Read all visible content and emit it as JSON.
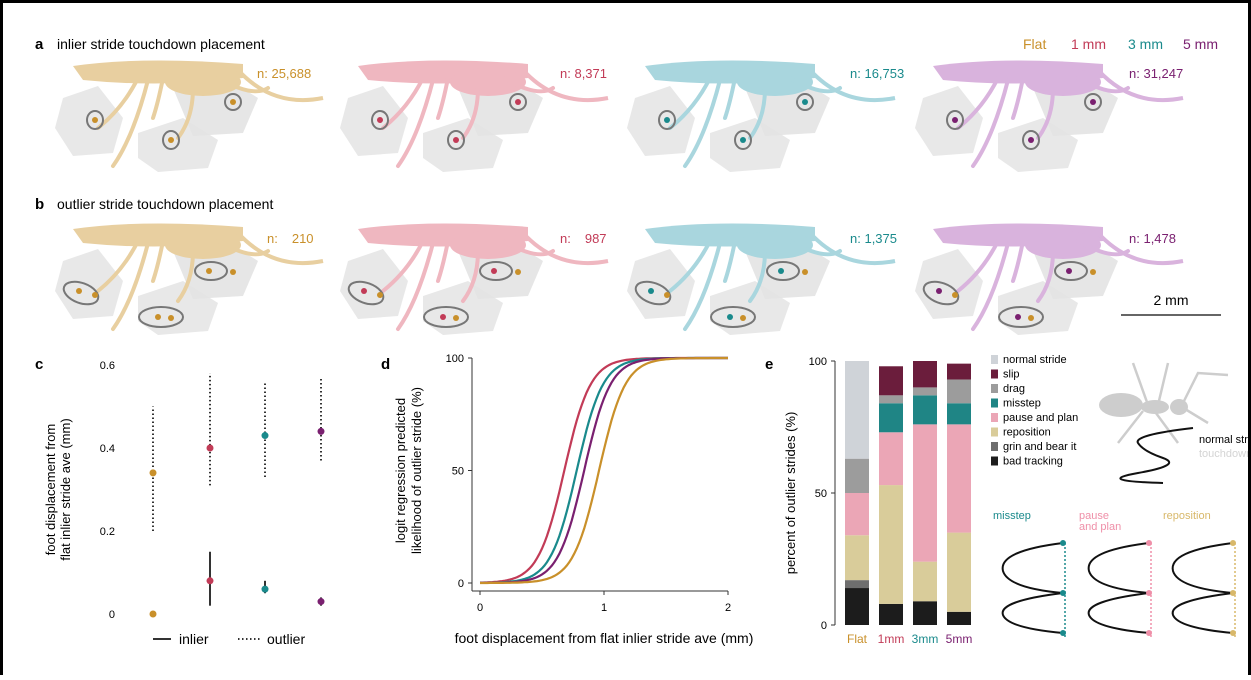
{
  "colors": {
    "flat": "#c9902a",
    "mm1": "#c23b57",
    "mm3": "#1a8a8c",
    "mm5": "#7a2070",
    "flat_light": "#e8cfa0",
    "mm1_light": "#efb7c0",
    "mm3_light": "#a9d6de",
    "mm5_light": "#d9b3dd"
  },
  "legend": {
    "flat": "Flat",
    "mm1": "1 mm",
    "mm3": "3 mm",
    "mm5": "5 mm"
  },
  "panel_a": {
    "letter": "a",
    "title": "inlier stride touchdown placement",
    "n_prefix": "n:",
    "counts": [
      "25,688",
      "8,371",
      "16,753",
      "31,247"
    ]
  },
  "panel_b": {
    "letter": "b",
    "title": "outlier stride touchdown placement",
    "n_prefix": "n:",
    "counts": [
      "210",
      "987",
      "1,375",
      "1,478"
    ],
    "scale_bar": "2 mm"
  },
  "chart_data": [
    {
      "panel": "c",
      "type": "scatter",
      "ylabel": "foot displacement from\nflat inlier stride ave (mm)",
      "ylim": [
        0,
        0.6
      ],
      "yticks": [
        0,
        0.2,
        0.4,
        0.6
      ],
      "legend": {
        "inlier": "inlier",
        "outlier": "outlier"
      },
      "inlier": [
        {
          "group": "Flat",
          "value": 0.0,
          "lo": 0.0,
          "hi": 0.0
        },
        {
          "group": "1 mm",
          "value": 0.08,
          "lo": 0.02,
          "hi": 0.15
        },
        {
          "group": "3 mm",
          "value": 0.06,
          "lo": 0.05,
          "hi": 0.08
        },
        {
          "group": "5 mm",
          "value": 0.03,
          "lo": 0.02,
          "hi": 0.04
        }
      ],
      "outlier": [
        {
          "group": "Flat",
          "value": 0.34,
          "lo": 0.2,
          "hi": 0.5
        },
        {
          "group": "1 mm",
          "value": 0.4,
          "lo": 0.31,
          "hi": 0.58
        },
        {
          "group": "3 mm",
          "value": 0.43,
          "lo": 0.33,
          "hi": 0.56
        },
        {
          "group": "5 mm",
          "value": 0.44,
          "lo": 0.37,
          "hi": 0.57
        }
      ]
    },
    {
      "panel": "d",
      "type": "line",
      "xlabel": "foot displacement from flat inlier stride ave (mm)",
      "ylabel": "logit regression predicted\nlikelihood of outlier stride (%)",
      "xlim": [
        0,
        2
      ],
      "ylim": [
        0,
        100
      ],
      "xticks": [
        0,
        1,
        2
      ],
      "yticks": [
        0,
        50,
        100
      ],
      "series": [
        {
          "group": "1 mm",
          "midpoint": 0.68,
          "slope": 9.5
        },
        {
          "group": "3 mm",
          "midpoint": 0.78,
          "slope": 9.5
        },
        {
          "group": "5 mm",
          "midpoint": 0.84,
          "slope": 9.5
        },
        {
          "group": "Flat",
          "midpoint": 0.96,
          "slope": 9.5
        }
      ]
    },
    {
      "panel": "e",
      "type": "bar",
      "stacked": true,
      "ylabel": "percent of outlier strides (%)",
      "ylim": [
        0,
        100
      ],
      "yticks": [
        0,
        50,
        100
      ],
      "categories": [
        "Flat",
        "1mm",
        "3mm",
        "5mm"
      ],
      "series": [
        {
          "name": "bad tracking",
          "color": "#1c1c1c",
          "values": [
            14,
            8,
            9,
            5
          ]
        },
        {
          "name": "grin and bear it",
          "color": "#6e6e6e",
          "values": [
            3,
            0,
            0,
            0
          ]
        },
        {
          "name": "reposition",
          "color": "#d9cc9a",
          "values": [
            17,
            45,
            15,
            30
          ]
        },
        {
          "name": "pause and plan",
          "color": "#eba6b6",
          "values": [
            16,
            20,
            52,
            41
          ]
        },
        {
          "name": "misstep",
          "color": "#1f8585",
          "values": [
            0,
            11,
            11,
            8
          ]
        },
        {
          "name": "drag",
          "color": "#9c9c9c",
          "values": [
            13,
            3,
            3,
            9
          ]
        },
        {
          "name": "slip",
          "color": "#6b1d3c",
          "values": [
            0,
            11,
            10,
            6
          ]
        },
        {
          "name": "normal stride",
          "color": "#cfd3d8",
          "values": [
            37,
            0,
            0,
            0
          ]
        }
      ],
      "legend_order": [
        "normal stride",
        "slip",
        "drag",
        "misstep",
        "pause and plan",
        "reposition",
        "grin and bear it",
        "bad tracking"
      ]
    }
  ],
  "inset": {
    "normal_label": "normal stride",
    "touchdown_label": "touchdowns",
    "traces": [
      {
        "label": "misstep",
        "color": "#1a8a8c"
      },
      {
        "label": "pause\nand plan",
        "color": "#ef8fa8"
      },
      {
        "label": "reposition",
        "color": "#d8b86a"
      }
    ]
  },
  "panel_letters": {
    "c": "c",
    "d": "d",
    "e": "e"
  }
}
